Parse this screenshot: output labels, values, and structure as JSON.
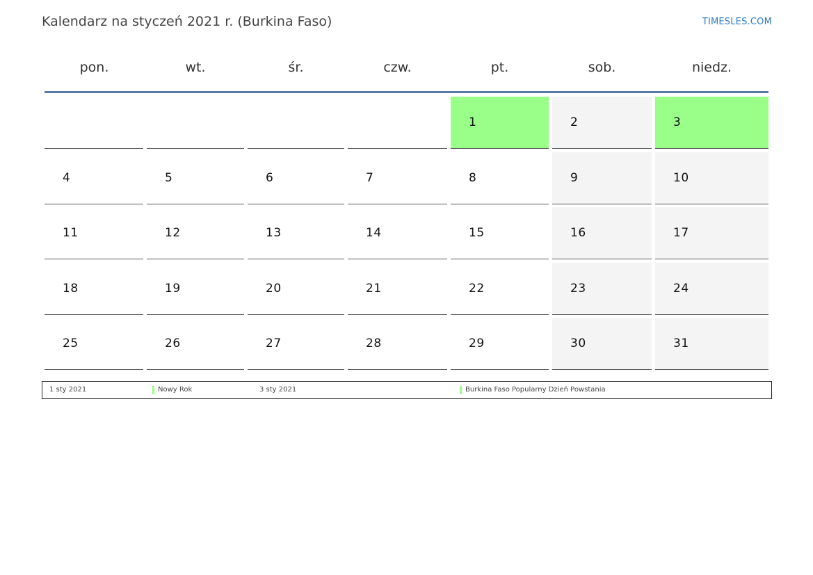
{
  "header": {
    "title": "Kalendarz na styczeń 2021 r. (Burkina Faso)",
    "site": "TIMESLES.COM"
  },
  "weekdays": [
    "pon.",
    "wt.",
    "śr.",
    "czw.",
    "pt.",
    "sob.",
    "niedz."
  ],
  "colors": {
    "holiday": "#99ff88",
    "weekend": "#f4f4f4",
    "header_rule": "#5a7aa6",
    "link": "#2e7bbf"
  },
  "weeks": [
    [
      {
        "day": "",
        "type": "empty"
      },
      {
        "day": "",
        "type": "empty"
      },
      {
        "day": "",
        "type": "empty"
      },
      {
        "day": "",
        "type": "empty"
      },
      {
        "day": "1",
        "type": "holiday"
      },
      {
        "day": "2",
        "type": "weekend"
      },
      {
        "day": "3",
        "type": "holiday"
      }
    ],
    [
      {
        "day": "4",
        "type": "normal"
      },
      {
        "day": "5",
        "type": "normal"
      },
      {
        "day": "6",
        "type": "normal"
      },
      {
        "day": "7",
        "type": "normal"
      },
      {
        "day": "8",
        "type": "normal"
      },
      {
        "day": "9",
        "type": "weekend"
      },
      {
        "day": "10",
        "type": "weekend"
      }
    ],
    [
      {
        "day": "11",
        "type": "normal"
      },
      {
        "day": "12",
        "type": "normal"
      },
      {
        "day": "13",
        "type": "normal"
      },
      {
        "day": "14",
        "type": "normal"
      },
      {
        "day": "15",
        "type": "normal"
      },
      {
        "day": "16",
        "type": "weekend"
      },
      {
        "day": "17",
        "type": "weekend"
      }
    ],
    [
      {
        "day": "18",
        "type": "normal"
      },
      {
        "day": "19",
        "type": "normal"
      },
      {
        "day": "20",
        "type": "normal"
      },
      {
        "day": "21",
        "type": "normal"
      },
      {
        "day": "22",
        "type": "normal"
      },
      {
        "day": "23",
        "type": "weekend"
      },
      {
        "day": "24",
        "type": "weekend"
      }
    ],
    [
      {
        "day": "25",
        "type": "normal"
      },
      {
        "day": "26",
        "type": "normal"
      },
      {
        "day": "27",
        "type": "normal"
      },
      {
        "day": "28",
        "type": "normal"
      },
      {
        "day": "29",
        "type": "normal"
      },
      {
        "day": "30",
        "type": "weekend"
      },
      {
        "day": "31",
        "type": "weekend"
      }
    ]
  ],
  "legend": [
    {
      "date": "1 sty 2021",
      "name": "Nowy Rok",
      "color": "#99ff88"
    },
    {
      "date": "3 sty 2021",
      "name": "Burkina Faso Popularny Dzień Powstania",
      "color": "#99ff88"
    }
  ]
}
